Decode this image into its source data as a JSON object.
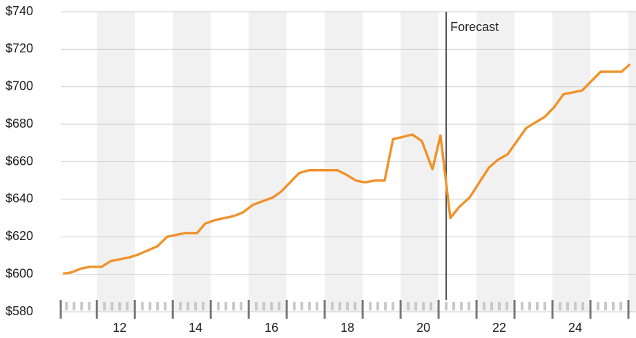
{
  "chart_data": {
    "type": "line",
    "x": [
      10.51,
      10.73,
      10.98,
      11.22,
      11.53,
      11.76,
      12.25,
      12.49,
      13.0,
      13.25,
      13.73,
      14.04,
      14.25,
      14.53,
      15.0,
      15.25,
      15.51,
      16.04,
      16.25,
      16.73,
      17.0,
      17.73,
      17.98,
      18.22,
      18.45,
      18.73,
      18.98,
      19.2,
      19.71,
      19.96,
      20.24,
      20.45,
      20.71,
      20.95,
      21.22,
      21.73,
      21.96,
      22.22,
      22.71,
      23.2,
      23.44,
      23.69,
      24.18,
      24.67,
      25.22,
      25.44
    ],
    "series": [
      {
        "color": "#f0922b",
        "values": [
          600.3,
          601,
          603,
          604,
          604,
          607,
          609,
          610.5,
          615,
          620,
          622,
          622,
          627,
          629,
          631,
          633,
          637,
          641,
          644,
          654,
          655.5,
          655.5,
          653,
          650,
          649,
          650,
          650,
          672,
          674.5,
          671,
          656,
          674,
          630,
          636,
          641,
          657,
          661,
          664,
          678,
          684,
          689,
          696,
          698,
          708,
          708,
          712
        ]
      }
    ],
    "xlim": [
      10.45,
      25.6
    ],
    "xticks": [
      12,
      14,
      16,
      18,
      20,
      22,
      24
    ],
    "ylim": [
      580,
      740
    ],
    "yticks": [
      {
        "value": 580,
        "label": "$580"
      },
      {
        "value": 600,
        "label": "$600"
      },
      {
        "value": 620,
        "label": "$620"
      },
      {
        "value": 640,
        "label": "$640"
      },
      {
        "value": 660,
        "label": "$660"
      },
      {
        "value": 680,
        "label": "$680"
      },
      {
        "value": 700,
        "label": "$700"
      },
      {
        "value": 720,
        "label": "$720"
      },
      {
        "value": 740,
        "label": "$740"
      }
    ],
    "grid": true,
    "annotation": {
      "x": 20.6,
      "text": "Forecast"
    }
  }
}
